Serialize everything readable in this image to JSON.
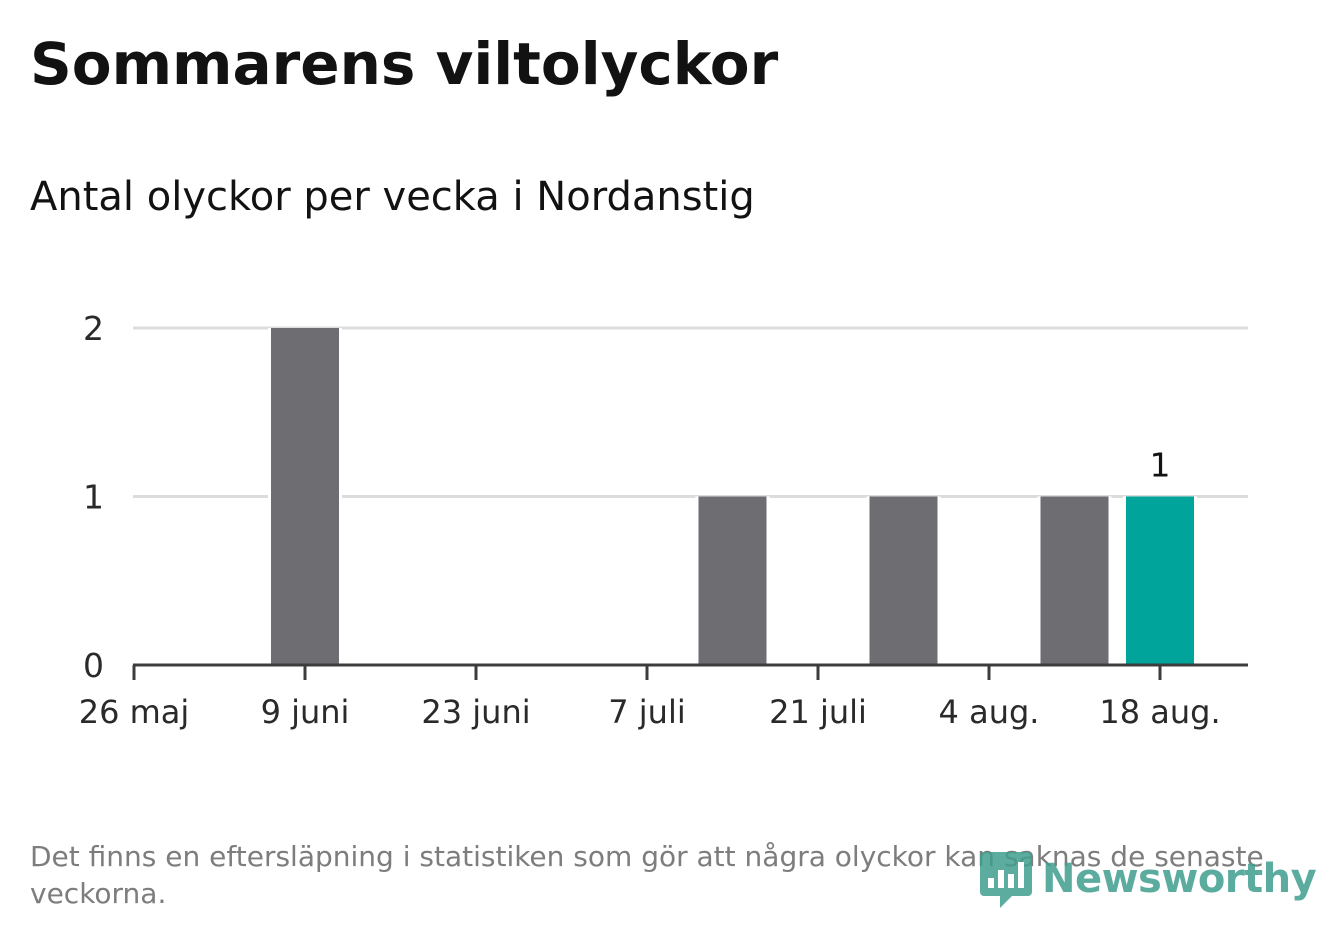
{
  "title": "Sommarens viltolyckor",
  "subtitle": "Antal olyckor per vecka i Nordanstig",
  "footnote": "Det finns en eftersläpning i statistiken som gör att några olyckor kan saknas de senaste veckorna.",
  "brand": "Newsworthy",
  "colors": {
    "bar": "#6e6d72",
    "highlight": "#00a49a",
    "grid": "#dcdcdc",
    "axis": "#3c3c3c",
    "brand": "#3f9e8e"
  },
  "chart_data": {
    "type": "bar",
    "categories": [
      "26 maj",
      "2 juni",
      "9 juni",
      "16 juni",
      "23 juni",
      "30 juni",
      "7 juli",
      "14 juli",
      "21 juli",
      "28 juli",
      "4 aug.",
      "11 aug.",
      "18 aug."
    ],
    "values": [
      0,
      0,
      2,
      0,
      0,
      0,
      0,
      1,
      0,
      1,
      0,
      1,
      1
    ],
    "x_tick_labels": [
      "26 maj",
      "9 juni",
      "23 juni",
      "7 juli",
      "21 juli",
      "4 aug.",
      "18 aug."
    ],
    "y_ticks": [
      0,
      1,
      2
    ],
    "ylim": [
      0,
      2
    ],
    "highlight_index": 12,
    "data_labels": [
      {
        "index": 12,
        "text": "1"
      }
    ],
    "grid": true
  }
}
